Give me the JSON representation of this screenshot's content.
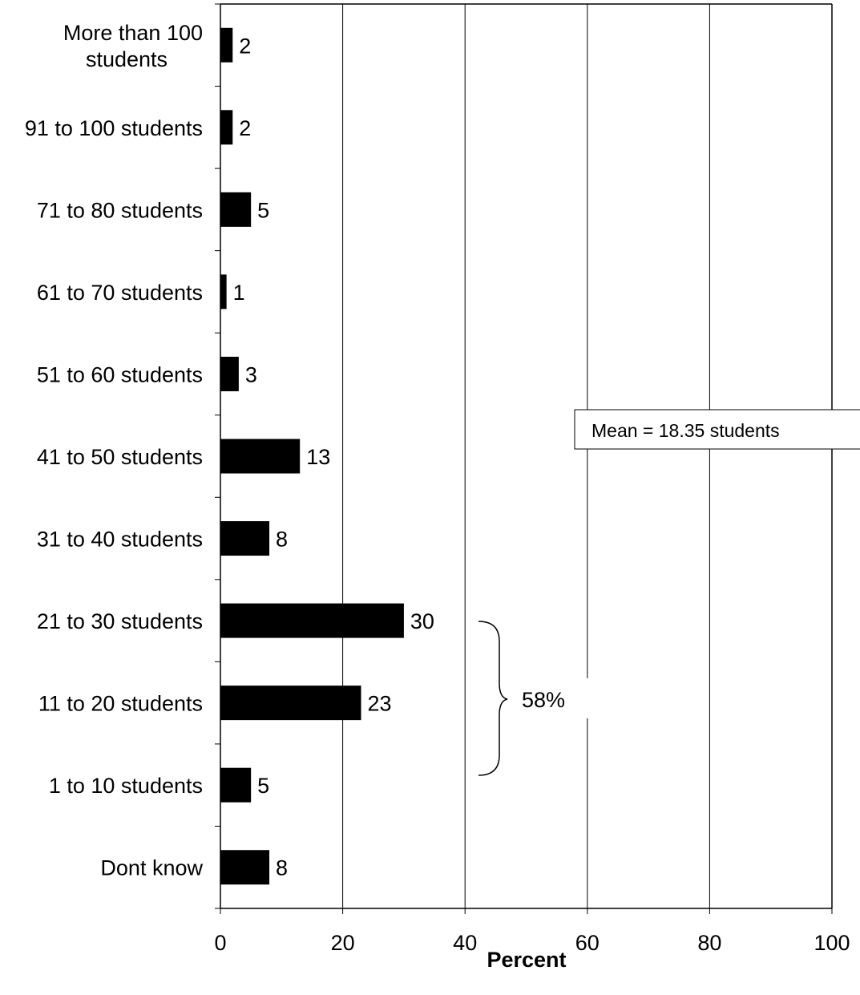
{
  "chart_data": {
    "type": "bar",
    "orientation": "horizontal",
    "categories": [
      "More than 100 students",
      "91 to 100 students",
      "71 to 80 students",
      "61 to 70 students",
      "51 to 60 students",
      "41 to 50 students",
      "31 to 40 students",
      "21 to 30 students",
      "11 to 20 students",
      "1 to 10 students",
      "Dont know"
    ],
    "category_lines": [
      [
        "More than 100",
        "students"
      ],
      [
        "91 to 100 students"
      ],
      [
        "71 to 80 students"
      ],
      [
        "61 to 70 students"
      ],
      [
        "51 to 60 students"
      ],
      [
        "41 to 50 students"
      ],
      [
        "31 to 40 students"
      ],
      [
        "21 to 30 students"
      ],
      [
        "11 to 20 students"
      ],
      [
        "1 to 10 students"
      ],
      [
        "Dont know"
      ]
    ],
    "values": [
      2,
      2,
      5,
      1,
      3,
      13,
      8,
      30,
      23,
      5,
      8
    ],
    "value_labels": [
      "2",
      "2",
      "5",
      "1",
      "3",
      "13",
      "8",
      "30",
      "23",
      "5",
      "8"
    ],
    "title": "",
    "xlabel": "Percent",
    "ylabel": "",
    "xlim": [
      0,
      100
    ],
    "xticks": [
      0,
      20,
      40,
      60,
      80,
      100
    ],
    "grid": "vertical",
    "bar_color": "#000000",
    "annotations": {
      "note": "Mean = 18.35 students",
      "bracket_label": "58%",
      "bracket_spans": [
        "21 to 30 students",
        "11 to 20 students",
        "1 to 10 students"
      ]
    }
  }
}
